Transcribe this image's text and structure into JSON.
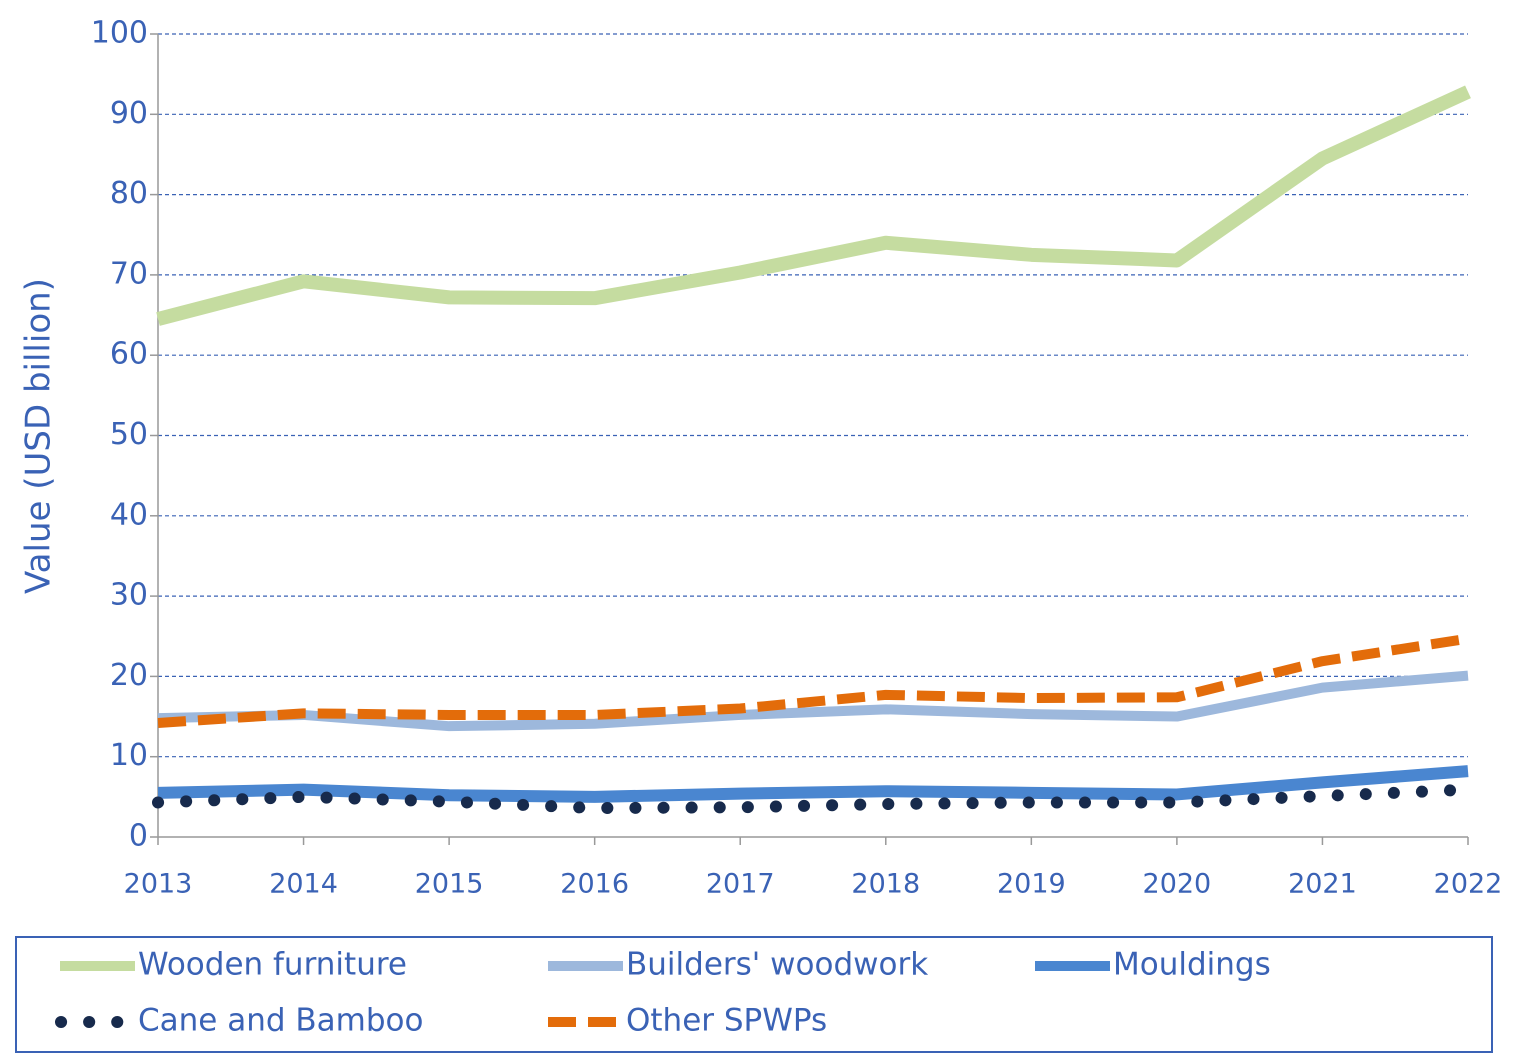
{
  "chart_data": {
    "type": "line",
    "y_label": "Value (USD billion)",
    "categories": [
      "2013",
      "2014",
      "2015",
      "2016",
      "2017",
      "2018",
      "2019",
      "2020",
      "2021",
      "2022"
    ],
    "series": [
      {
        "name": "Wooden furniture",
        "color": "#c5dca0",
        "style": "solid",
        "values": [
          64.5,
          69.2,
          67.2,
          67.1,
          70.3,
          74.0,
          72.5,
          71.8,
          84.5,
          92.8
        ]
      },
      {
        "name": "Builders' woodwork",
        "color": "#9db8dc",
        "style": "solid",
        "values": [
          14.8,
          15.2,
          13.8,
          14.1,
          15.2,
          15.9,
          15.3,
          15.0,
          18.6,
          20.1
        ]
      },
      {
        "name": "Mouldings",
        "color": "#4a86d0",
        "style": "solid",
        "values": [
          5.5,
          5.9,
          5.2,
          5.0,
          5.4,
          5.7,
          5.5,
          5.3,
          6.8,
          8.2
        ]
      },
      {
        "name": "Cane and Bamboo",
        "color": "#172a4c",
        "style": "dotted",
        "values": [
          4.3,
          5.0,
          4.4,
          3.6,
          3.7,
          4.1,
          4.3,
          4.3,
          5.1,
          5.9
        ]
      },
      {
        "name": "Other SPWPs",
        "color": "#e36c0a",
        "style": "dashed",
        "values": [
          14.2,
          15.4,
          15.2,
          15.2,
          16.0,
          17.7,
          17.3,
          17.4,
          21.9,
          24.7
        ]
      }
    ],
    "ylim": [
      0,
      100
    ],
    "yticks": [
      0,
      10,
      20,
      30,
      40,
      50,
      60,
      70,
      80,
      90,
      100
    ],
    "grid": true,
    "legend": "bottom"
  }
}
